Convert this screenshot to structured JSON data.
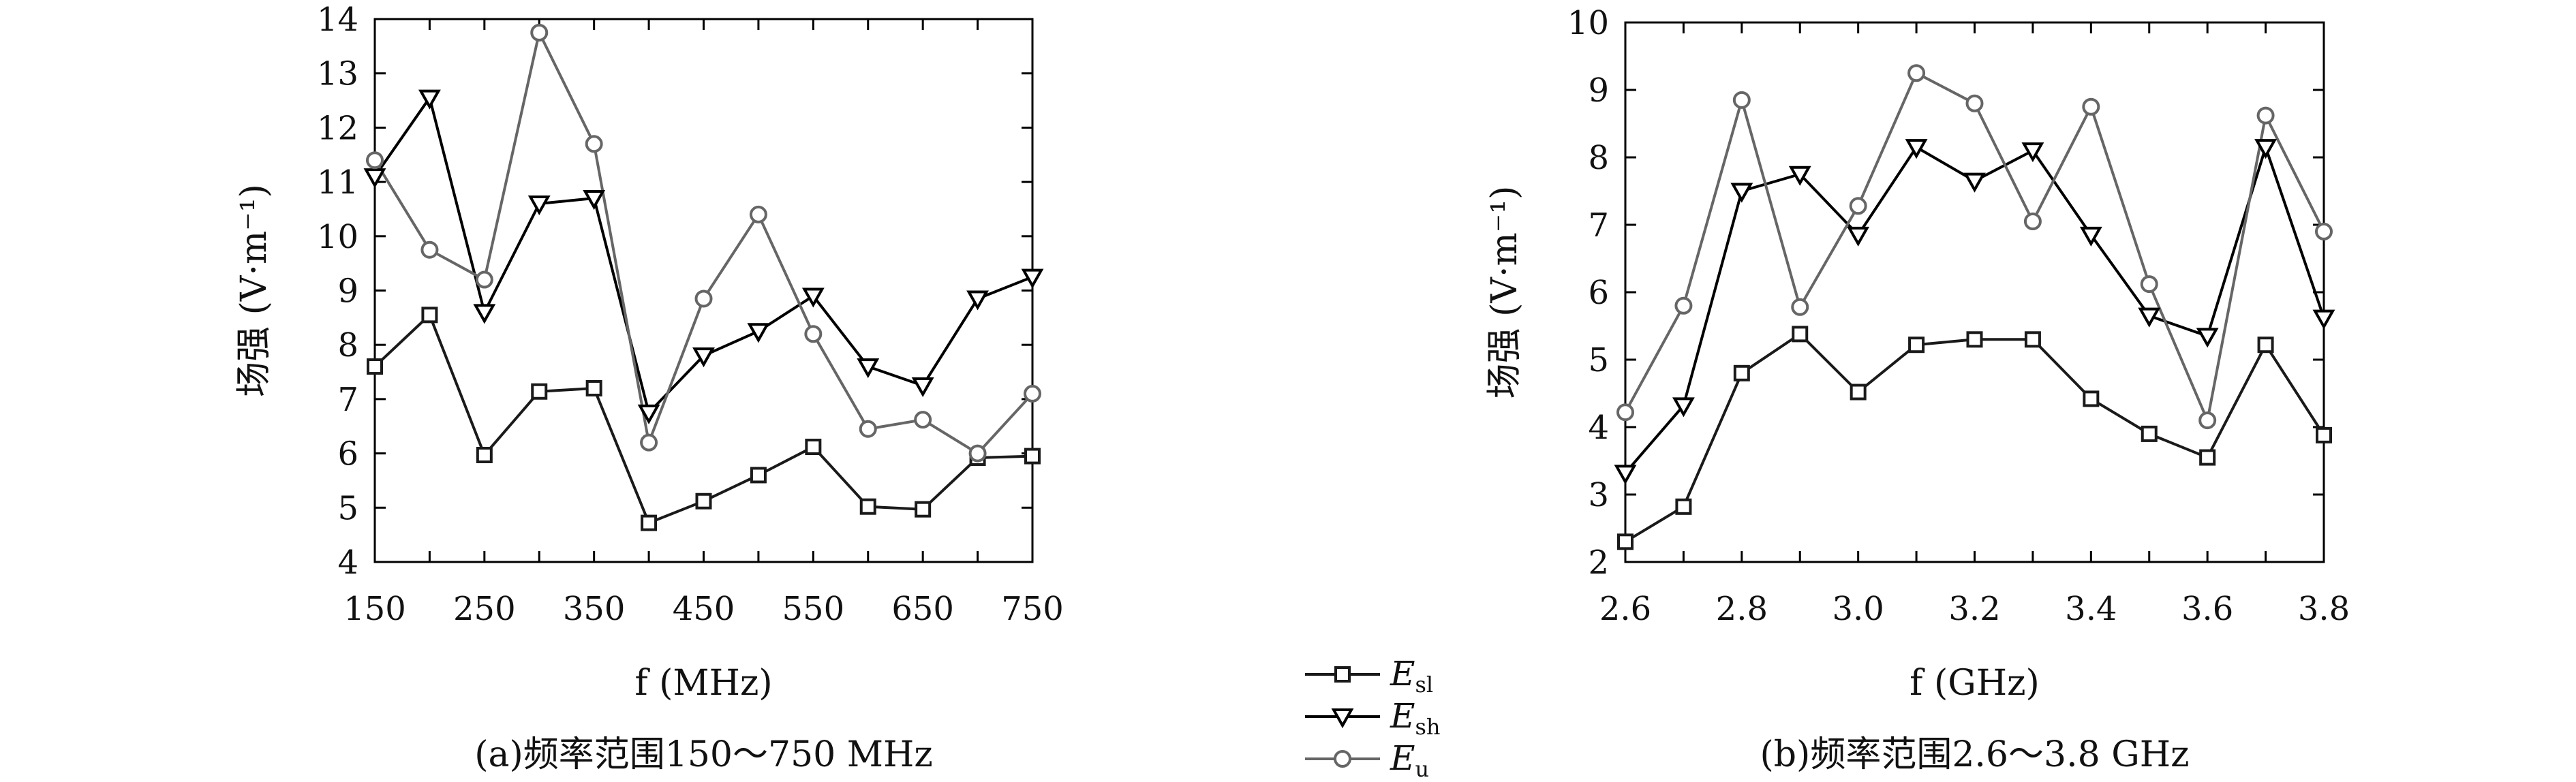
{
  "chart_data": [
    {
      "type": "line",
      "caption": "(a)频率范围150～750 MHz",
      "xlabel": "f (MHz)",
      "ylabel": "场强 (V·m⁻¹)",
      "x": [
        150,
        200,
        250,
        300,
        350,
        400,
        450,
        500,
        550,
        600,
        650,
        700,
        750
      ],
      "xticks": [
        "150",
        "250",
        "350",
        "450",
        "550",
        "650",
        "750"
      ],
      "xlim": [
        150,
        750
      ],
      "ylim": [
        4,
        14
      ],
      "yticks": [
        "4",
        "5",
        "6",
        "7",
        "8",
        "9",
        "10",
        "11",
        "12",
        "13",
        "14"
      ],
      "series": [
        {
          "name": "E_sl",
          "marker": "square",
          "color": "#1a1a1a",
          "values": [
            7.6,
            8.55,
            5.97,
            7.14,
            7.2,
            4.72,
            5.12,
            5.6,
            6.12,
            5.02,
            4.97,
            5.92,
            5.95
          ]
        },
        {
          "name": "E_sh",
          "marker": "triangle-down",
          "color": "#000000",
          "values": [
            11.1,
            12.55,
            8.6,
            10.6,
            10.7,
            6.75,
            7.8,
            8.25,
            8.9,
            7.6,
            7.25,
            8.85,
            9.25
          ]
        },
        {
          "name": "E_u",
          "marker": "circle",
          "color": "#666666",
          "values": [
            11.4,
            9.75,
            9.2,
            13.75,
            11.7,
            6.2,
            8.85,
            10.4,
            8.2,
            6.45,
            6.62,
            6.0,
            7.1
          ]
        }
      ]
    },
    {
      "type": "line",
      "caption": "(b)频率范围2.6～3.8 GHz",
      "xlabel": "f (GHz)",
      "ylabel": "场强 (V·m⁻¹)",
      "x": [
        2.6,
        2.7,
        2.8,
        2.9,
        3.0,
        3.1,
        3.2,
        3.3,
        3.4,
        3.5,
        3.6,
        3.7,
        3.8
      ],
      "xticks": [
        "2.6",
        "2.8",
        "3.0",
        "3.2",
        "3.4",
        "3.6",
        "3.8"
      ],
      "xlim": [
        2.6,
        3.8
      ],
      "ylim": [
        2,
        10
      ],
      "yticks": [
        "2",
        "3",
        "4",
        "5",
        "6",
        "7",
        "8",
        "9",
        "10"
      ],
      "series": [
        {
          "name": "E_sl",
          "marker": "square",
          "color": "#1a1a1a",
          "values": [
            2.3,
            2.82,
            4.8,
            5.38,
            4.52,
            5.22,
            5.3,
            5.3,
            4.42,
            3.9,
            3.55,
            5.22,
            3.88
          ]
        },
        {
          "name": "E_sh",
          "marker": "triangle-down",
          "color": "#000000",
          "values": [
            3.32,
            4.32,
            7.5,
            7.75,
            6.85,
            8.15,
            7.65,
            8.1,
            6.85,
            5.65,
            5.35,
            8.15,
            5.62
          ]
        },
        {
          "name": "E_u",
          "marker": "circle",
          "color": "#666666",
          "values": [
            4.22,
            5.8,
            8.85,
            5.78,
            7.28,
            9.25,
            8.8,
            7.05,
            8.75,
            6.12,
            4.1,
            8.62,
            6.9
          ]
        }
      ]
    }
  ],
  "legend": {
    "placement": "bottom-center",
    "entries": [
      {
        "symbol": "E",
        "sub": "sl",
        "marker": "square",
        "color": "#1a1a1a"
      },
      {
        "symbol": "E",
        "sub": "sh",
        "marker": "triangle-down",
        "color": "#000000"
      },
      {
        "symbol": "E",
        "sub": "u",
        "marker": "circle",
        "color": "#666666"
      }
    ]
  }
}
